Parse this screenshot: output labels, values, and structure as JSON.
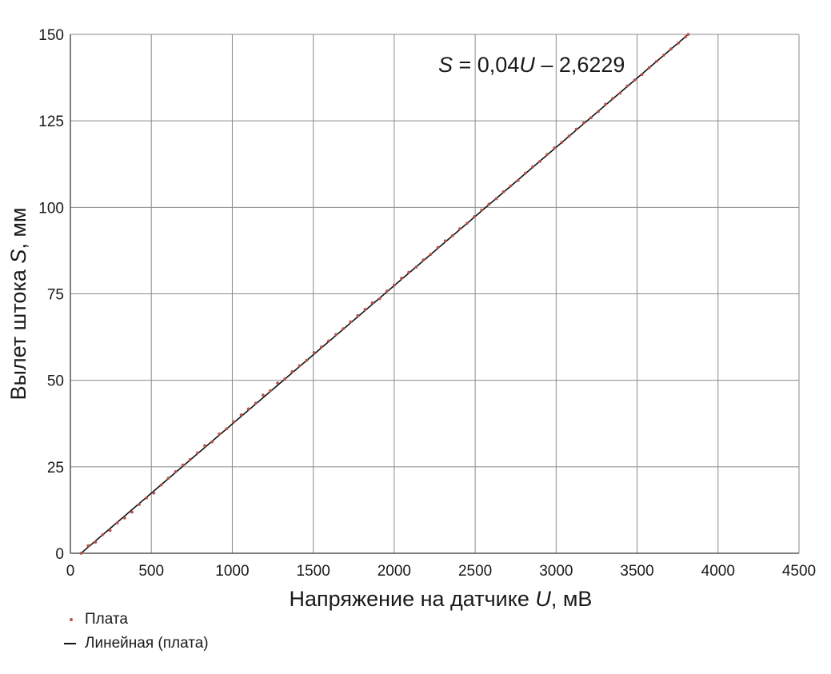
{
  "chart_data": {
    "type": "scatter",
    "xlabel_text": "Напряжение на датчике ",
    "xlabel_var": "U",
    "xlabel_unit": ", мВ",
    "ylabel_text": "Вылет штока ",
    "ylabel_var": "S",
    "ylabel_unit": ", мм",
    "xlim": [
      0,
      4500
    ],
    "ylim": [
      0,
      150
    ],
    "x_ticks": [
      "0",
      "500",
      "1000",
      "1500",
      "2000",
      "2500",
      "3000",
      "3500",
      "4000",
      "4500"
    ],
    "y_ticks": [
      "0",
      "25",
      "50",
      "75",
      "100",
      "125",
      "150"
    ],
    "grid": true,
    "legend_position": "bottom-left",
    "equation": {
      "lhs": "S",
      "mid": " = 0,04",
      "var": "U",
      "rhs": " – 2,6229"
    },
    "fit": {
      "slope": 0.04,
      "intercept": -2.6229,
      "x_start": 66,
      "x_end": 3816
    },
    "series": [
      {
        "name": "Плата",
        "color": "#b5534f",
        "x": [
          66,
          110,
          155,
          200,
          245,
          290,
          335,
          380,
          425,
          470,
          515,
          560,
          605,
          650,
          695,
          740,
          785,
          830,
          875,
          920,
          965,
          1010,
          1055,
          1100,
          1145,
          1190,
          1235,
          1280,
          1325,
          1370,
          1415,
          1460,
          1505,
          1550,
          1595,
          1640,
          1685,
          1730,
          1775,
          1820,
          1865,
          1910,
          1955,
          2000,
          2045,
          2090,
          2135,
          2180,
          2225,
          2270,
          2315,
          2360,
          2405,
          2450,
          2495,
          2540,
          2585,
          2630,
          2675,
          2720,
          2765,
          2810,
          2855,
          2900,
          2945,
          2990,
          3035,
          3080,
          3125,
          3170,
          3215,
          3260,
          3305,
          3350,
          3395,
          3440,
          3485,
          3530,
          3575,
          3620,
          3665,
          3710,
          3755,
          3800,
          3816
        ],
        "y": [
          0.0,
          2.2,
          3.2,
          5.4,
          6.6,
          8.8,
          10.2,
          11.9,
          14.1,
          16.0,
          17.4,
          19.7,
          21.7,
          23.6,
          25.5,
          27.1,
          29.0,
          31.1,
          32.2,
          34.5,
          36.0,
          38.0,
          40.0,
          41.7,
          43.4,
          45.7,
          47.0,
          49.2,
          50.4,
          52.5,
          54.2,
          55.8,
          58.0,
          59.6,
          61.4,
          63.2,
          64.9,
          66.9,
          68.7,
          70.5,
          72.4,
          73.6,
          75.8,
          77.5,
          79.5,
          81.2,
          82.7,
          84.8,
          86.4,
          88.4,
          90.3,
          91.8,
          93.8,
          95.4,
          97.3,
          99.2,
          100.9,
          102.5,
          104.5,
          106.2,
          107.8,
          109.9,
          111.7,
          113.3,
          115.3,
          117.2,
          118.8,
          120.6,
          122.6,
          124.4,
          125.9,
          127.7,
          129.8,
          131.5,
          133.0,
          135.1,
          136.8,
          138.4,
          140.4,
          142.2,
          144.0,
          145.8,
          147.5,
          149.3,
          150.0
        ]
      },
      {
        "name": "Линейная (плата)",
        "color": "#111111"
      }
    ]
  }
}
